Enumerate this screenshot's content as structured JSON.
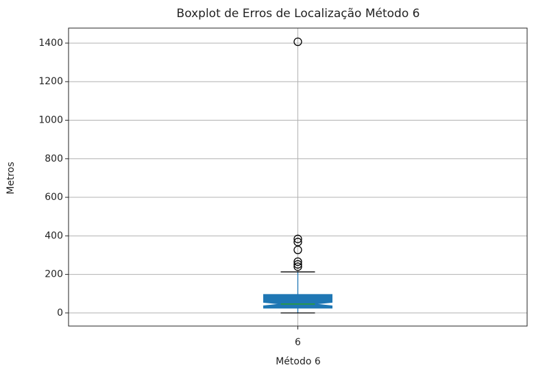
{
  "chart_data": {
    "type": "box",
    "title": "Boxplot de Erros de Localização Método 6",
    "xlabel": "Método 6",
    "ylabel": "Metros",
    "categories": [
      "6"
    ],
    "boxes": [
      {
        "whisker_low": 0,
        "q1": 25,
        "notch_low": 37,
        "median": 46,
        "notch_high": 55,
        "q3": 96,
        "whisker_high": 213,
        "outliers": [
          1407,
          384,
          368,
          327,
          266,
          252,
          240
        ]
      }
    ],
    "color": "#1f77b4",
    "median_color": "#2ca02c",
    "ylim": [
      -68,
      1478
    ],
    "yticks": [
      0,
      200,
      400,
      600,
      800,
      1000,
      1200,
      1400
    ],
    "grid": true
  }
}
